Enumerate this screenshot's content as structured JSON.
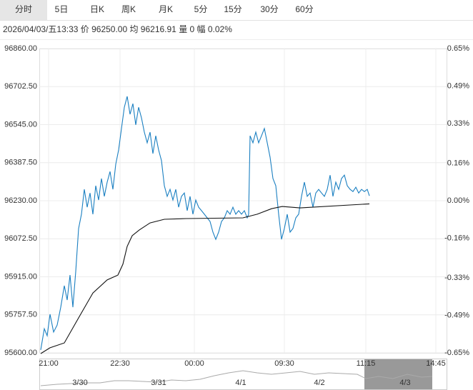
{
  "tabs": [
    "分时",
    "5日",
    "日K",
    "周K",
    "月K",
    "5分",
    "15分",
    "30分",
    "60分"
  ],
  "info": "2026/04/03/五13:33 价 96250.00 均 96216.91 量 0 幅 0.02%",
  "navigator": {
    "labels": [
      "3/30",
      "3/31",
      "4/1",
      "4/2",
      "4/3"
    ]
  },
  "chart_data": {
    "type": "line",
    "xlim": [
      -13,
      557
    ],
    "xticks": [
      {
        "value": 0,
        "label": "21:00"
      },
      {
        "value": 100,
        "label": "22:30"
      },
      {
        "value": 204,
        "label": "00:00"
      },
      {
        "value": 330,
        "label": "09:30"
      },
      {
        "value": 444,
        "label": "11:15"
      },
      {
        "value": 542,
        "label": "14:45"
      }
    ],
    "ylim": [
      95600,
      96860
    ],
    "yticks": [
      {
        "value": 96860,
        "label": "96860.00"
      },
      {
        "value": 96702.5,
        "label": "96702.50"
      },
      {
        "value": 96545,
        "label": "96545.00"
      },
      {
        "value": 96387.5,
        "label": "96387.50"
      },
      {
        "value": 96230,
        "label": "96230.00"
      },
      {
        "value": 96072.5,
        "label": "96072.50"
      },
      {
        "value": 95915,
        "label": "95915.00"
      },
      {
        "value": 95757.5,
        "label": "95757.50"
      },
      {
        "value": 95600,
        "label": "95600.00"
      }
    ],
    "y2lim": [
      -0.65,
      0.65
    ],
    "y2ticks": [
      {
        "value": 0.65,
        "label": "0.65%"
      },
      {
        "value": 0.49,
        "label": "0.49%"
      },
      {
        "value": 0.33,
        "label": "0.33%"
      },
      {
        "value": 0.16,
        "label": "0.16%"
      },
      {
        "value": 0,
        "label": "0.00%"
      },
      {
        "value": -0.16,
        "label": "-0.16%"
      },
      {
        "value": -0.33,
        "label": "-0.33%"
      },
      {
        "value": -0.49,
        "label": "-0.49%"
      },
      {
        "value": -0.65,
        "label": "-0.65%"
      }
    ],
    "grid": true,
    "series": [
      {
        "color": "#1a7fc1",
        "x": [
          -11,
          -6,
          -2,
          2,
          7,
          12,
          17,
          22,
          26,
          30,
          34,
          38,
          42,
          46,
          50,
          54,
          58,
          62,
          66,
          70,
          74,
          78,
          82,
          86,
          90,
          94,
          98,
          102,
          106,
          110,
          114,
          118,
          122,
          126,
          130,
          134,
          138,
          142,
          146,
          150,
          154,
          158,
          162,
          166,
          170,
          174,
          178,
          182,
          186,
          190,
          194,
          198,
          202,
          206,
          210,
          214,
          218,
          222,
          226,
          230,
          234,
          238,
          242,
          246,
          250,
          254,
          258,
          262,
          266,
          270,
          274,
          278,
          280,
          282,
          286,
          290,
          294,
          298,
          302,
          306,
          310,
          314,
          318,
          322,
          326,
          330,
          334,
          338,
          342,
          346,
          350,
          354,
          358,
          362,
          366,
          370,
          374,
          378,
          382,
          386,
          390,
          394,
          398,
          402,
          406,
          410,
          414,
          418,
          422,
          426,
          430,
          434,
          438,
          442,
          446,
          449
        ],
        "values": [
          95612,
          95700,
          95671,
          95760,
          95686,
          95715,
          95789,
          95878,
          95819,
          95922,
          95789,
          95937,
          96115,
          96174,
          96277,
          96203,
          96262,
          96174,
          96292,
          96233,
          96322,
          96248,
          96307,
          96351,
          96277,
          96381,
          96440,
          96529,
          96617,
          96662,
          96588,
          96632,
          96544,
          96617,
          96573,
          96514,
          96470,
          96514,
          96425,
          96499,
          96440,
          96396,
          96292,
          96248,
          96277,
          96233,
          96277,
          96203,
          96248,
          96262,
          96189,
          96248,
          96174,
          96233,
          96203,
          96189,
          96174,
          96159,
          96144,
          96100,
          96070,
          96100,
          96144,
          96159,
          96189,
          96174,
          96203,
          96174,
          96189,
          96174,
          96189,
          96159,
          96174,
          96499,
          96470,
          96514,
          96470,
          96499,
          96529,
          96470,
          96410,
          96322,
          96292,
          96174,
          96070,
          96115,
          96174,
          96100,
          96115,
          96159,
          96174,
          96248,
          96307,
          96248,
          96262,
          96203,
          96262,
          96277,
          96262,
          96248,
          96277,
          96336,
          96248,
          96307,
          96277,
          96322,
          96336,
          96292,
          96277,
          96268,
          96286,
          96262,
          96277,
          96268,
          96277,
          96250
        ]
      },
      {
        "color": "#111111",
        "x": [
          -11,
          2,
          22,
          42,
          62,
          82,
          97,
          104,
          110,
          117,
          127,
          142,
          162,
          192,
          272,
          292,
          312,
          327,
          352,
          449
        ],
        "values": [
          95597,
          95621,
          95641,
          95745,
          95848,
          95902,
          95922,
          95967,
          96041,
          96085,
          96109,
          96138,
          96153,
          96156,
          96159,
          96174,
          96197,
          96206,
          96200,
          96217
        ]
      }
    ]
  }
}
